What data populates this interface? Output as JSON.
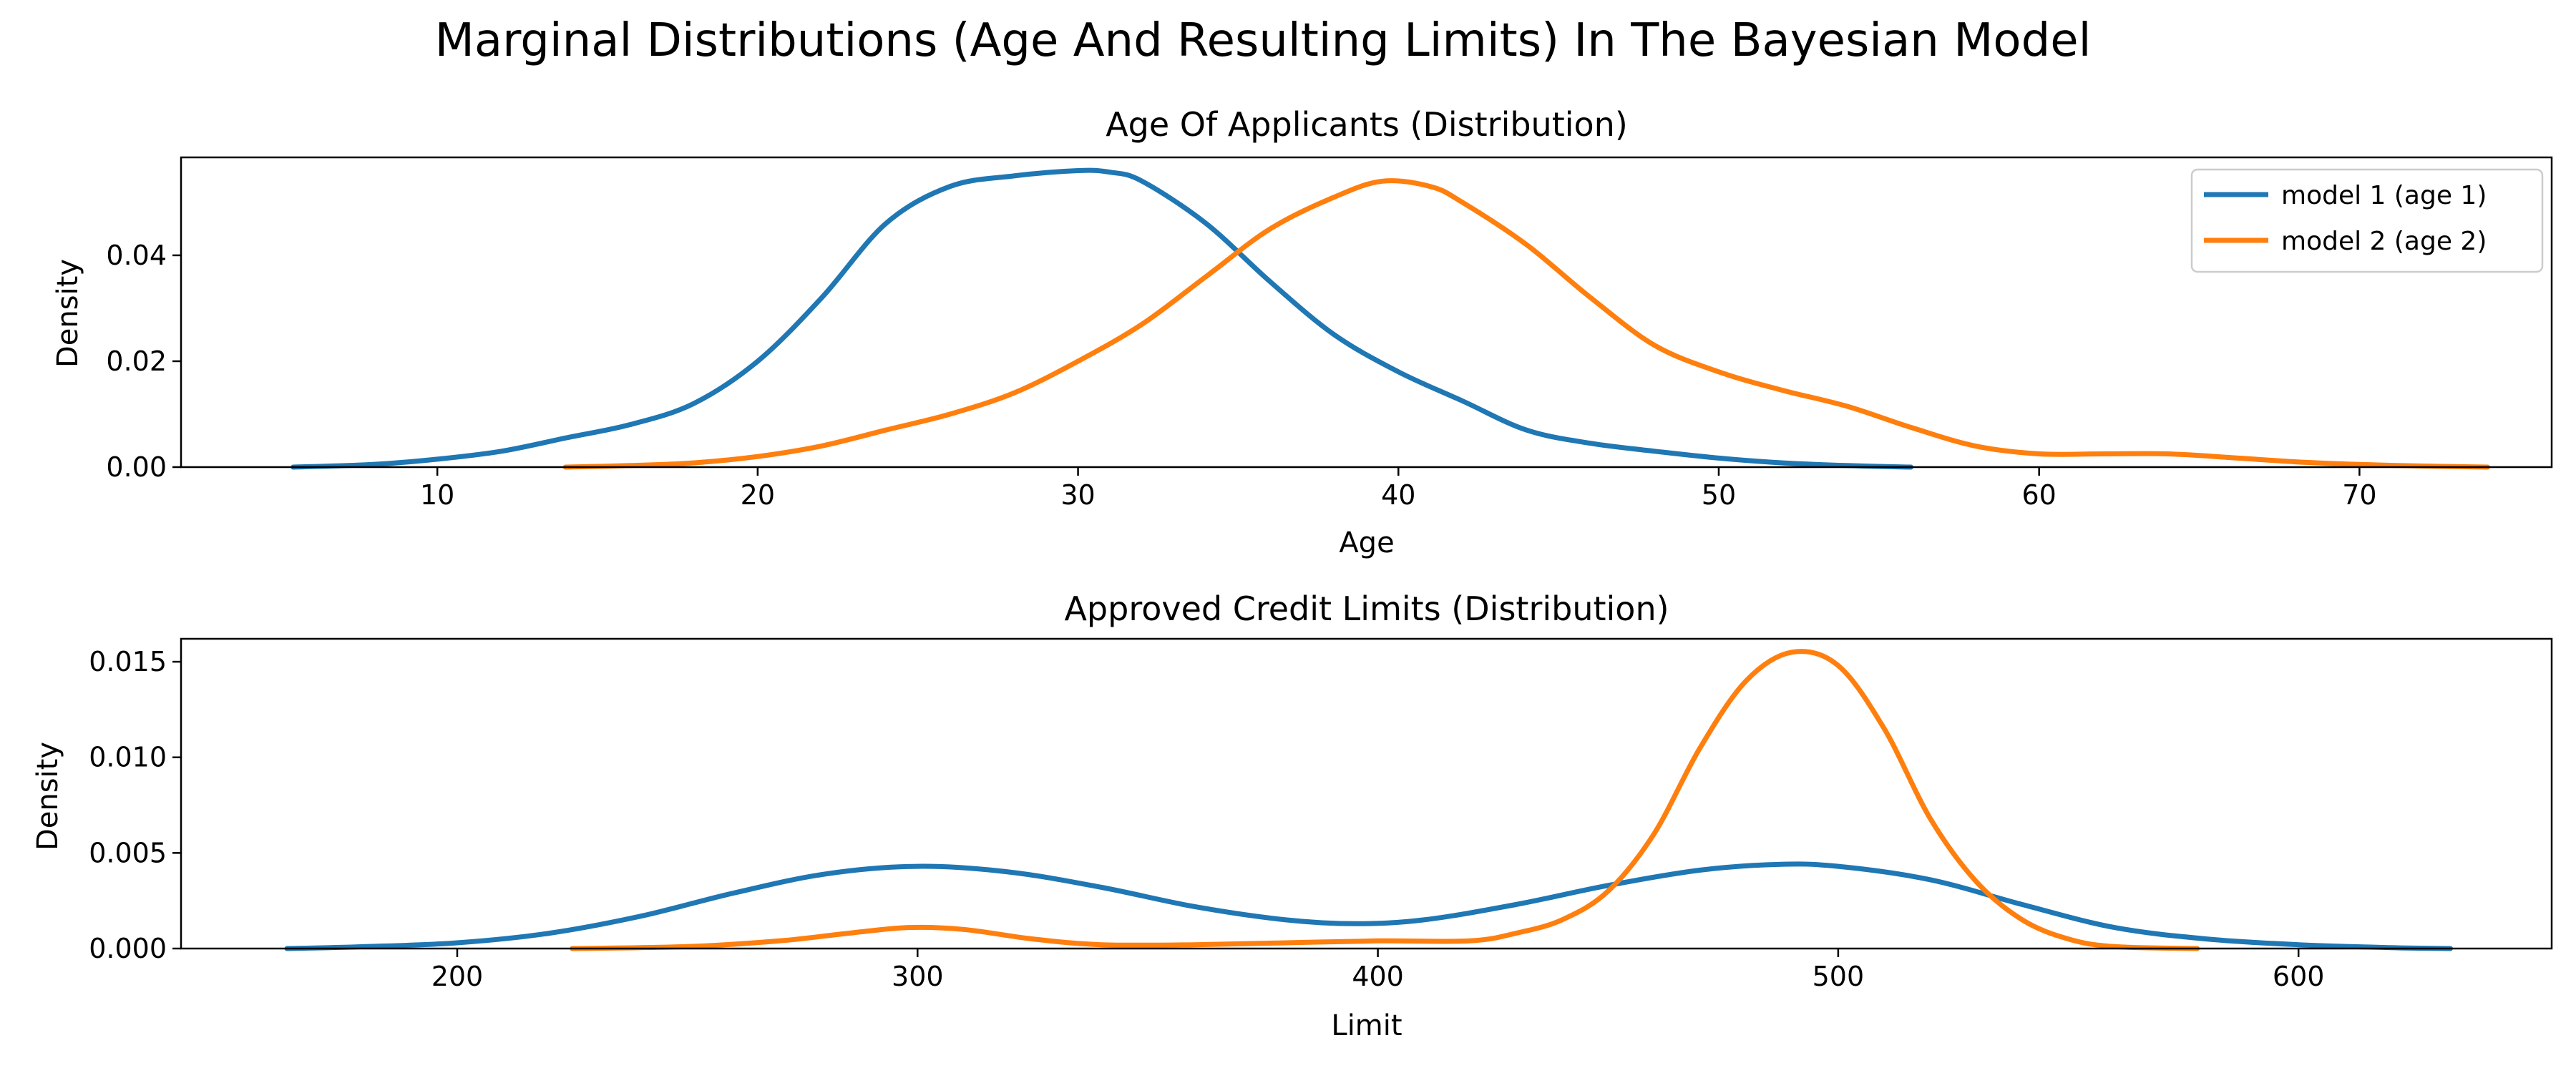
{
  "chart_data": {
    "title": "Marginal Distributions (Age And Resulting Limits) In The Bayesian Model",
    "colors": {
      "model1": "#1f77b4",
      "model2": "#ff7f0e"
    },
    "panels": [
      {
        "type": "line",
        "title": "Age Of Applicants (Distribution)",
        "xlabel": "Age",
        "ylabel": "Density",
        "xlim": [
          2,
          76
        ],
        "ylim": [
          0,
          0.0585
        ],
        "xticks": [
          10,
          20,
          30,
          40,
          50,
          60,
          70
        ],
        "xtick_labels": [
          "10",
          "20",
          "30",
          "40",
          "50",
          "60",
          "70"
        ],
        "yticks": [
          0,
          0.02,
          0.04
        ],
        "ytick_labels": [
          "0.00",
          "0.02",
          "0.04"
        ],
        "legend": {
          "placement": "top-right"
        },
        "series": [
          {
            "name": "model 1 (age 1)",
            "color": "#1f77b4",
            "x": [
              5.5,
              8,
              10,
              12,
              14,
              16,
              18,
              20,
              22,
              24,
              26,
              28,
              30,
              31,
              32,
              34,
              36,
              38,
              40,
              42,
              44,
              46,
              48,
              50,
              52,
              54,
              56
            ],
            "y": [
              0,
              0.0005,
              0.0015,
              0.003,
              0.0055,
              0.008,
              0.012,
              0.02,
              0.032,
              0.046,
              0.053,
              0.055,
              0.056,
              0.0557,
              0.054,
              0.046,
              0.035,
              0.025,
              0.018,
              0.0125,
              0.007,
              0.0045,
              0.003,
              0.0017,
              0.0008,
              0.0003,
              0
            ]
          },
          {
            "name": "model 2 (age 2)",
            "color": "#ff7f0e",
            "x": [
              14,
              16,
              18,
              20,
              22,
              24,
              26,
              28,
              30,
              32,
              34,
              36,
              38,
              39.5,
              41,
              42,
              44,
              46,
              48,
              50,
              52,
              54,
              56,
              58,
              60,
              62,
              64,
              66,
              68,
              70,
              72,
              74
            ],
            "y": [
              0,
              0.0003,
              0.0008,
              0.002,
              0.004,
              0.007,
              0.01,
              0.014,
              0.02,
              0.027,
              0.036,
              0.045,
              0.051,
              0.054,
              0.053,
              0.05,
              0.042,
              0.032,
              0.023,
              0.018,
              0.0145,
              0.0115,
              0.0075,
              0.004,
              0.0025,
              0.0025,
              0.0025,
              0.0018,
              0.001,
              0.0005,
              0.0002,
              0
            ]
          }
        ]
      },
      {
        "type": "line",
        "title": "Approved Credit Limits (Distribution)",
        "xlabel": "Limit",
        "ylabel": "Density",
        "xlim": [
          140,
          655
        ],
        "ylim": [
          0,
          0.0162
        ],
        "xticks": [
          200,
          300,
          400,
          500,
          600
        ],
        "xtick_labels": [
          "200",
          "300",
          "400",
          "500",
          "600"
        ],
        "yticks": [
          0,
          0.005,
          0.01,
          0.015
        ],
        "ytick_labels": [
          "0.000",
          "0.005",
          "0.010",
          "0.015"
        ],
        "series": [
          {
            "name": "model 1 (age 1)",
            "color": "#1f77b4",
            "x": [
              163,
              180,
              200,
              220,
              240,
              260,
              280,
              300,
              320,
              340,
              360,
              380,
              395,
              410,
              430,
              450,
              470,
              487,
              500,
              520,
              540,
              560,
              580,
              600,
              620,
              633
            ],
            "y": [
              0,
              0.0001,
              0.0003,
              0.0008,
              0.0017,
              0.0029,
              0.0039,
              0.0043,
              0.004,
              0.0032,
              0.0022,
              0.0015,
              0.0013,
              0.0015,
              0.0023,
              0.0033,
              0.0041,
              0.0044,
              0.0043,
              0.0036,
              0.0023,
              0.0011,
              0.0005,
              0.0002,
              5e-05,
              0
            ]
          },
          {
            "name": "model 2 (age 2)",
            "color": "#ff7f0e",
            "x": [
              225,
              250,
              270,
              285,
              298,
              310,
              325,
              340,
              360,
              380,
              400,
              420,
              430,
              440,
              450,
              460,
              470,
              480,
              490,
              500,
              510,
              520,
              530,
              540,
              550,
              560,
              578
            ],
            "y": [
              0,
              0.0001,
              0.0004,
              0.0008,
              0.0011,
              0.001,
              0.0005,
              0.0002,
              0.0002,
              0.0003,
              0.0004,
              0.0004,
              0.0008,
              0.0015,
              0.003,
              0.006,
              0.0105,
              0.014,
              0.0155,
              0.0148,
              0.0115,
              0.0068,
              0.0035,
              0.0015,
              0.0005,
              0.0001,
              0
            ]
          }
        ]
      }
    ]
  }
}
